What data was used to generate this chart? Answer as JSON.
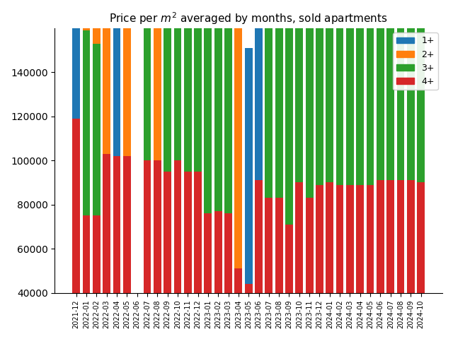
{
  "title": "Price per $m^2$ averaged by months, sold apartments",
  "categories": [
    "2021-12",
    "2022-01",
    "2022-02",
    "2022-03",
    "2022-04",
    "2022-05",
    "2022-06",
    "2022-07",
    "2022-08",
    "2022-09",
    "2022-10",
    "2022-11",
    "2022-12",
    "2023-01",
    "2023-02",
    "2023-03",
    "2023-04",
    "2023-05",
    "2023-06",
    "2023-07",
    "2023-08",
    "2023-09",
    "2023-10",
    "2023-11",
    "2023-12",
    "2024-01",
    "2024-02",
    "2024-03",
    "2024-04",
    "2024-05",
    "2024-06",
    "2024-07",
    "2024-08",
    "2024-09",
    "2024-10"
  ],
  "series": {
    "1+": [
      119000,
      0,
      0,
      0,
      145000,
      145000,
      0,
      127000,
      126000,
      0,
      115000,
      0,
      0,
      0,
      0,
      103000,
      0,
      107000,
      106000,
      0,
      0,
      0,
      110000,
      0,
      105000,
      0,
      111000,
      113000,
      116000,
      0,
      111000,
      113000,
      114000,
      130000,
      0
    ],
    "2+": [
      0,
      107000,
      107000,
      122000,
      0,
      115000,
      0,
      0,
      104000,
      100000,
      0,
      101000,
      101000,
      0,
      0,
      0,
      119000,
      0,
      0,
      0,
      107000,
      99000,
      0,
      98000,
      0,
      97000,
      0,
      99000,
      102000,
      103000,
      103000,
      104000,
      104000,
      104000,
      104000
    ],
    "3+": [
      0,
      84000,
      78000,
      0,
      0,
      0,
      0,
      84000,
      0,
      84000,
      85000,
      85000,
      85000,
      89000,
      90000,
      89000,
      0,
      0,
      0,
      95000,
      129000,
      91000,
      90000,
      90000,
      90000,
      91000,
      91000,
      92000,
      100000,
      92000,
      91000,
      103000,
      92000,
      91000,
      102000
    ],
    "4+": [
      119000,
      75000,
      75000,
      103000,
      102000,
      102000,
      0,
      100000,
      100000,
      95000,
      100000,
      95000,
      95000,
      76000,
      77000,
      76000,
      51000,
      44000,
      91000,
      83000,
      83000,
      71000,
      90000,
      83000,
      89000,
      90000,
      89000,
      89000,
      89000,
      89000,
      91000,
      91000,
      91000,
      91000,
      90000
    ]
  },
  "colors": {
    "1+": "#1f77b4",
    "2+": "#ff7f0e",
    "3+": "#2ca02c",
    "4+": "#d62728"
  },
  "ylim": [
    40000,
    160000
  ],
  "yticks": [
    40000,
    60000,
    80000,
    100000,
    120000,
    140000
  ],
  "legend_order": [
    "1+",
    "2+",
    "3+",
    "4+"
  ]
}
